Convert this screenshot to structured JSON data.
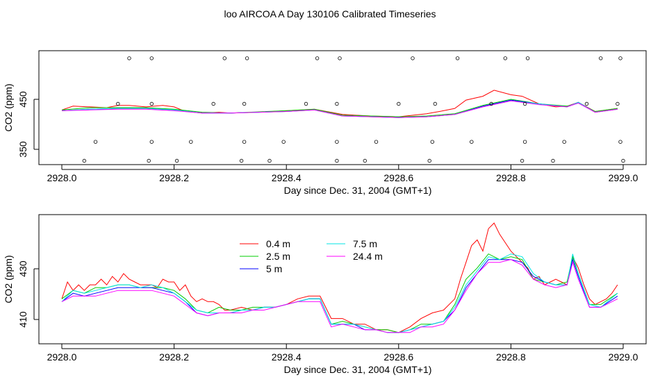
{
  "title": "loo AIRCOA A  Day 130106  Calibrated Timeseries",
  "colors": {
    "0.4 m": "#ff0000",
    "2.5 m": "#00cc00",
    "5 m": "#0000ff",
    "7.5 m": "#00e5e5",
    "24.4 m": "#ff00ff"
  },
  "chart_data": [
    {
      "type": "line",
      "xlabel": "Day since Dec. 31, 2004 (GMT+1)",
      "ylabel": "CO2 (ppm)",
      "xlim": [
        2928.0,
        2929.0
      ],
      "ylim": [
        340,
        490
      ],
      "xticks": [
        "2928.0",
        "2928.2",
        "2928.4",
        "2928.6",
        "2928.8",
        "2929.0"
      ],
      "yticks": [
        "350",
        "450"
      ],
      "series": [
        {
          "key": "0.4 m",
          "x": [
            2928.0,
            2928.02,
            2928.05,
            2928.08,
            2928.1,
            2928.12,
            2928.15,
            2928.18,
            2928.2,
            2928.22,
            2928.25,
            2928.28,
            2928.3,
            2928.35,
            2928.4,
            2928.45,
            2928.5,
            2928.55,
            2928.6,
            2928.65,
            2928.68,
            2928.7,
            2928.72,
            2928.75,
            2928.77,
            2928.8,
            2928.82,
            2928.85,
            2928.88,
            2928.9,
            2928.92,
            2928.95,
            2928.99
          ],
          "y": [
            412,
            417,
            416,
            415,
            418,
            418,
            416,
            418,
            416,
            410,
            408,
            409,
            408,
            409,
            411,
            413,
            406,
            404,
            403,
            407,
            411,
            414,
            425,
            430,
            438,
            432,
            430,
            420,
            416,
            417,
            422,
            410,
            414
          ]
        },
        {
          "key": "2.5 m",
          "x": [
            2928.0,
            2928.05,
            2928.1,
            2928.15,
            2928.2,
            2928.25,
            2928.3,
            2928.4,
            2928.45,
            2928.5,
            2928.6,
            2928.65,
            2928.7,
            2928.75,
            2928.8,
            2928.85,
            2928.9,
            2928.92,
            2928.95,
            2928.99
          ],
          "y": [
            412,
            415,
            415,
            415,
            413,
            409,
            408,
            411,
            413,
            405,
            403,
            404,
            407,
            418,
            426,
            420,
            417,
            421,
            410,
            414
          ]
        },
        {
          "key": "5 m",
          "x": [
            2928.0,
            2928.05,
            2928.1,
            2928.15,
            2928.2,
            2928.25,
            2928.3,
            2928.4,
            2928.45,
            2928.5,
            2928.6,
            2928.65,
            2928.7,
            2928.75,
            2928.8,
            2928.85,
            2928.9,
            2928.92,
            2928.95,
            2928.99
          ],
          "y": [
            411,
            413,
            414,
            414,
            412,
            408,
            408,
            410,
            412,
            404,
            402,
            403,
            406,
            417,
            425,
            420,
            416,
            422,
            409,
            413
          ]
        },
        {
          "key": "7.5 m",
          "x": [
            2928.0,
            2928.05,
            2928.1,
            2928.15,
            2928.2,
            2928.25,
            2928.3,
            2928.4,
            2928.45,
            2928.5,
            2928.6,
            2928.65,
            2928.7,
            2928.75,
            2928.8,
            2928.85,
            2928.9,
            2928.92,
            2928.95,
            2928.99
          ],
          "y": [
            411,
            413,
            414,
            414,
            412,
            408,
            408,
            410,
            412,
            404,
            402,
            403,
            406,
            416,
            424,
            420,
            416,
            422,
            409,
            413
          ]
        },
        {
          "key": "24.4 m",
          "x": [
            2928.0,
            2928.05,
            2928.1,
            2928.15,
            2928.2,
            2928.25,
            2928.3,
            2928.4,
            2928.45,
            2928.5,
            2928.6,
            2928.65,
            2928.7,
            2928.75,
            2928.8,
            2928.85,
            2928.9,
            2928.92,
            2928.95,
            2928.99
          ],
          "y": [
            411,
            412,
            413,
            413,
            411,
            408,
            408,
            410,
            412,
            404,
            402,
            403,
            406,
            416,
            424,
            419,
            416,
            421,
            409,
            413
          ]
        }
      ],
      "markers": {
        "x": [
          2928.04,
          2928.06,
          2928.1,
          2928.12,
          2928.155,
          2928.16,
          2928.16,
          2928.16,
          2928.205,
          2928.23,
          2928.27,
          2928.29,
          2928.32,
          2928.325,
          2928.325,
          2928.33,
          2928.37,
          2928.395,
          2928.435,
          2928.455,
          2928.49,
          2928.49,
          2928.49,
          2928.495,
          2928.54,
          2928.56,
          2928.6,
          2928.625,
          2928.655,
          2928.66,
          2928.665,
          2928.705,
          2928.73,
          2928.765,
          2928.79,
          2928.82,
          2928.825,
          2928.825,
          2928.83,
          2928.875,
          2928.895,
          2928.935,
          2928.96,
          2928.99,
          2928.995,
          2928.995,
          2929.0
        ],
        "y": [
          345,
          370,
          420,
          480,
          345,
          370,
          420,
          480,
          345,
          370,
          420,
          480,
          345,
          370,
          420,
          480,
          345,
          370,
          420,
          480,
          345,
          370,
          420,
          480,
          345,
          370,
          420,
          480,
          345,
          370,
          420,
          480,
          370,
          420,
          480,
          345,
          370,
          420,
          480,
          345,
          370,
          420,
          480,
          420,
          480,
          370,
          345
        ]
      }
    },
    {
      "type": "line",
      "xlabel": "Day since Dec. 31, 2004 (GMT+1)",
      "ylabel": "CO2 (ppm)",
      "xlim": [
        2928.0,
        2929.0
      ],
      "ylim": [
        397,
        443
      ],
      "xticks": [
        "2928.0",
        "2928.2",
        "2928.4",
        "2928.6",
        "2928.8",
        "2929.0"
      ],
      "yticks": [
        "410",
        "430"
      ],
      "legend": [
        "0.4 m",
        "2.5 m",
        "5 m",
        "7.5 m",
        "24.4 m"
      ],
      "series": [
        {
          "key": "0.4 m",
          "name": "0.4 m",
          "x": [
            2928.0,
            2928.01,
            2928.02,
            2928.03,
            2928.04,
            2928.05,
            2928.06,
            2928.07,
            2928.08,
            2928.09,
            2928.1,
            2928.11,
            2928.12,
            2928.13,
            2928.14,
            2928.15,
            2928.16,
            2928.17,
            2928.18,
            2928.19,
            2928.2,
            2928.21,
            2928.22,
            2928.23,
            2928.24,
            2928.25,
            2928.26,
            2928.27,
            2928.28,
            2928.29,
            2928.3,
            2928.32,
            2928.34,
            2928.36,
            2928.38,
            2928.4,
            2928.42,
            2928.44,
            2928.46,
            2928.48,
            2928.5,
            2928.52,
            2928.54,
            2928.56,
            2928.58,
            2928.6,
            2928.62,
            2928.64,
            2928.66,
            2928.68,
            2928.7,
            2928.71,
            2928.72,
            2928.73,
            2928.74,
            2928.75,
            2928.76,
            2928.77,
            2928.78,
            2928.79,
            2928.8,
            2928.81,
            2928.82,
            2928.83,
            2928.84,
            2928.85,
            2928.86,
            2928.87,
            2928.88,
            2928.89,
            2928.9,
            2928.91,
            2928.92,
            2928.93,
            2928.94,
            2928.95,
            2928.96,
            2928.97,
            2928.98,
            2928.99
          ],
          "y": [
            413,
            419,
            416,
            418,
            416,
            418,
            418,
            420,
            418,
            421,
            419,
            422,
            420,
            419,
            418,
            418,
            418,
            417,
            420,
            419,
            419,
            416,
            418,
            414,
            412,
            413,
            412,
            412,
            411,
            409,
            409,
            410,
            409,
            410,
            410,
            411,
            413,
            414,
            414,
            406,
            406,
            404,
            404,
            402,
            402,
            401,
            403,
            406,
            408,
            409,
            413,
            420,
            426,
            432,
            434,
            430,
            438,
            440,
            436,
            433,
            430,
            428,
            426,
            424,
            420,
            421,
            418,
            419,
            420,
            419,
            418,
            428,
            424,
            418,
            413,
            411,
            412,
            413,
            415,
            418
          ]
        },
        {
          "key": "2.5 m",
          "name": "2.5 m",
          "x": [
            2928.0,
            2928.02,
            2928.04,
            2928.06,
            2928.08,
            2928.1,
            2928.12,
            2928.14,
            2928.16,
            2928.18,
            2928.2,
            2928.22,
            2928.24,
            2928.26,
            2928.28,
            2928.3,
            2928.32,
            2928.34,
            2928.36,
            2928.38,
            2928.4,
            2928.42,
            2928.44,
            2928.46,
            2928.48,
            2928.5,
            2928.52,
            2928.54,
            2928.56,
            2928.58,
            2928.6,
            2928.62,
            2928.64,
            2928.66,
            2928.68,
            2928.7,
            2928.72,
            2928.74,
            2928.76,
            2928.78,
            2928.8,
            2928.82,
            2928.84,
            2928.86,
            2928.88,
            2928.9,
            2928.91,
            2928.92,
            2928.94,
            2928.96,
            2928.99
          ],
          "y": [
            413,
            416,
            415,
            417,
            417,
            418,
            418,
            417,
            417,
            417,
            416,
            413,
            409,
            408,
            410,
            409,
            409,
            410,
            410,
            410,
            411,
            412,
            413,
            413,
            404,
            405,
            404,
            403,
            402,
            402,
            401,
            402,
            404,
            404,
            405,
            411,
            420,
            424,
            429,
            427,
            428,
            427,
            420,
            419,
            418,
            419,
            428,
            422,
            411,
            411,
            415
          ]
        },
        {
          "key": "5 m",
          "name": "5 m",
          "x": [
            2928.0,
            2928.02,
            2928.04,
            2928.06,
            2928.08,
            2928.1,
            2928.12,
            2928.14,
            2928.16,
            2928.18,
            2928.2,
            2928.22,
            2928.24,
            2928.26,
            2928.28,
            2928.3,
            2928.32,
            2928.34,
            2928.36,
            2928.38,
            2928.4,
            2928.42,
            2928.44,
            2928.46,
            2928.48,
            2928.5,
            2928.52,
            2928.54,
            2928.56,
            2928.58,
            2928.6,
            2928.62,
            2928.64,
            2928.66,
            2928.68,
            2928.7,
            2928.72,
            2928.74,
            2928.76,
            2928.78,
            2928.8,
            2928.82,
            2928.84,
            2928.86,
            2928.88,
            2928.9,
            2928.91,
            2928.92,
            2928.94,
            2928.96,
            2928.99
          ],
          "y": [
            412,
            415,
            414,
            415,
            416,
            417,
            417,
            417,
            417,
            416,
            415,
            412,
            408,
            407,
            408,
            408,
            409,
            409,
            410,
            410,
            411,
            412,
            413,
            413,
            404,
            404,
            404,
            402,
            402,
            401,
            401,
            402,
            403,
            404,
            405,
            409,
            417,
            422,
            427,
            427,
            427,
            426,
            421,
            419,
            418,
            418,
            427,
            421,
            410,
            410,
            414
          ]
        },
        {
          "key": "7.5 m",
          "name": "7.5 m",
          "x": [
            2928.0,
            2928.02,
            2928.04,
            2928.06,
            2928.08,
            2928.1,
            2928.12,
            2928.14,
            2928.16,
            2928.18,
            2928.2,
            2928.22,
            2928.24,
            2928.26,
            2928.28,
            2928.3,
            2928.32,
            2928.34,
            2928.36,
            2928.38,
            2928.4,
            2928.42,
            2928.44,
            2928.46,
            2928.48,
            2928.5,
            2928.52,
            2928.54,
            2928.56,
            2928.58,
            2928.6,
            2928.62,
            2928.64,
            2928.66,
            2928.68,
            2928.7,
            2928.72,
            2928.74,
            2928.76,
            2928.78,
            2928.8,
            2928.82,
            2928.84,
            2928.86,
            2928.88,
            2928.9,
            2928.91,
            2928.92,
            2928.94,
            2928.96,
            2928.99
          ],
          "y": [
            412,
            416,
            415,
            416,
            417,
            418,
            418,
            417,
            418,
            417,
            415,
            412,
            409,
            408,
            408,
            408,
            409,
            409,
            410,
            410,
            411,
            412,
            413,
            413,
            404,
            404,
            404,
            403,
            402,
            401,
            401,
            402,
            403,
            404,
            405,
            410,
            418,
            423,
            428,
            427,
            429,
            428,
            422,
            419,
            418,
            418,
            429,
            422,
            411,
            410,
            415
          ]
        },
        {
          "key": "24.4 m",
          "name": "24.4 m",
          "x": [
            2928.0,
            2928.02,
            2928.04,
            2928.06,
            2928.08,
            2928.1,
            2928.12,
            2928.14,
            2928.16,
            2928.18,
            2928.2,
            2928.22,
            2928.24,
            2928.26,
            2928.28,
            2928.3,
            2928.32,
            2928.34,
            2928.36,
            2928.38,
            2928.4,
            2928.42,
            2928.44,
            2928.46,
            2928.48,
            2928.5,
            2928.52,
            2928.54,
            2928.56,
            2928.58,
            2928.6,
            2928.62,
            2928.64,
            2928.66,
            2928.68,
            2928.7,
            2928.72,
            2928.74,
            2928.76,
            2928.78,
            2928.8,
            2928.82,
            2928.84,
            2928.86,
            2928.88,
            2928.9,
            2928.91,
            2928.92,
            2928.94,
            2928.96,
            2928.99
          ],
          "y": [
            412,
            414,
            414,
            414,
            415,
            416,
            416,
            416,
            416,
            415,
            414,
            411,
            408,
            407,
            408,
            408,
            408,
            409,
            409,
            410,
            411,
            412,
            412,
            412,
            403,
            404,
            403,
            402,
            402,
            401,
            401,
            401,
            403,
            403,
            404,
            409,
            416,
            422,
            426,
            426,
            427,
            425,
            420,
            418,
            417,
            418,
            426,
            420,
            410,
            410,
            413
          ]
        }
      ]
    }
  ]
}
